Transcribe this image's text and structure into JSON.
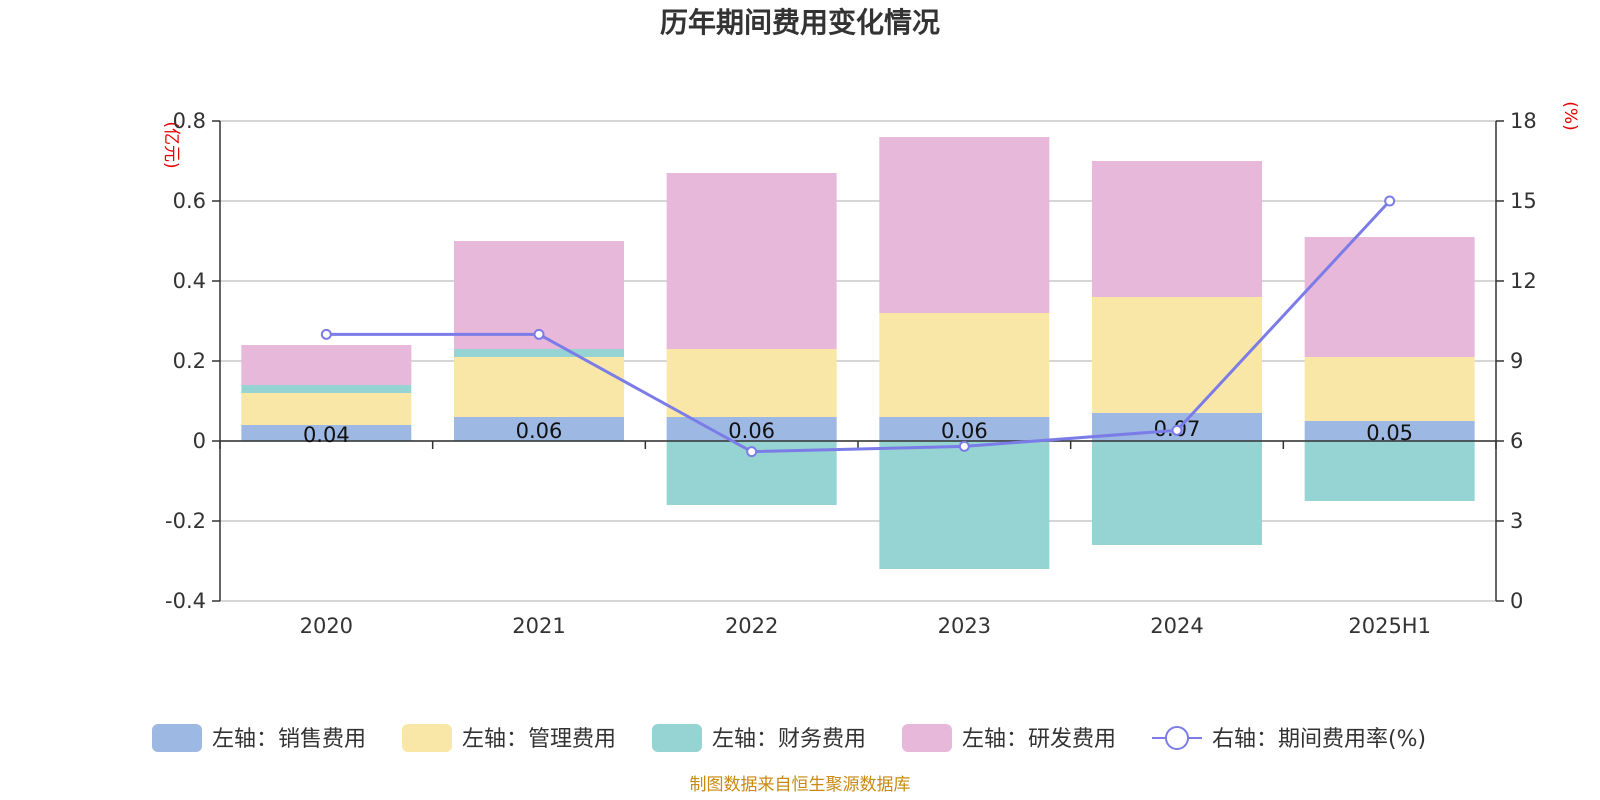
{
  "chart_data": {
    "type": "bar",
    "title": "历年期间费用变化情况",
    "categories": [
      "2020",
      "2021",
      "2022",
      "2023",
      "2024",
      "2025H1"
    ],
    "left_axis": {
      "unit": "(亿元)",
      "ylim": [
        -0.4,
        0.8
      ],
      "ticks": [
        -0.4,
        -0.2,
        0,
        0.2,
        0.4,
        0.6,
        0.8
      ]
    },
    "right_axis": {
      "unit": "(%)",
      "ylim": [
        0,
        18
      ],
      "ticks": [
        0,
        3,
        6,
        9,
        12,
        15,
        18
      ]
    },
    "series": [
      {
        "name": "左轴：销售费用",
        "type": "bar",
        "color": "#9db8e3",
        "values": [
          0.04,
          0.06,
          0.06,
          0.06,
          0.07,
          0.05
        ],
        "value_labels": [
          "0.04",
          "0.06",
          "0.06",
          "0.06",
          "0.07",
          "0.05"
        ]
      },
      {
        "name": "左轴：管理费用",
        "type": "bar",
        "color": "#f8e7a6",
        "values": [
          0.08,
          0.15,
          0.17,
          0.26,
          0.29,
          0.16
        ]
      },
      {
        "name": "左轴：财务费用",
        "type": "bar",
        "color": "#96d3d3",
        "values": [
          0.02,
          0.02,
          -0.16,
          -0.32,
          -0.26,
          -0.15
        ]
      },
      {
        "name": "左轴：研发费用",
        "type": "bar",
        "color": "#e7b8d9",
        "values": [
          0.1,
          0.27,
          0.44,
          0.44,
          0.34,
          0.3
        ]
      },
      {
        "name": "右轴：期间费用率(%)",
        "type": "line",
        "color": "#7b7ce8",
        "values": [
          10.0,
          10.0,
          5.6,
          5.8,
          6.4,
          15.0
        ]
      }
    ],
    "grid": true,
    "legend_position": "bottom",
    "source": "制图数据来自恒生聚源数据库"
  }
}
